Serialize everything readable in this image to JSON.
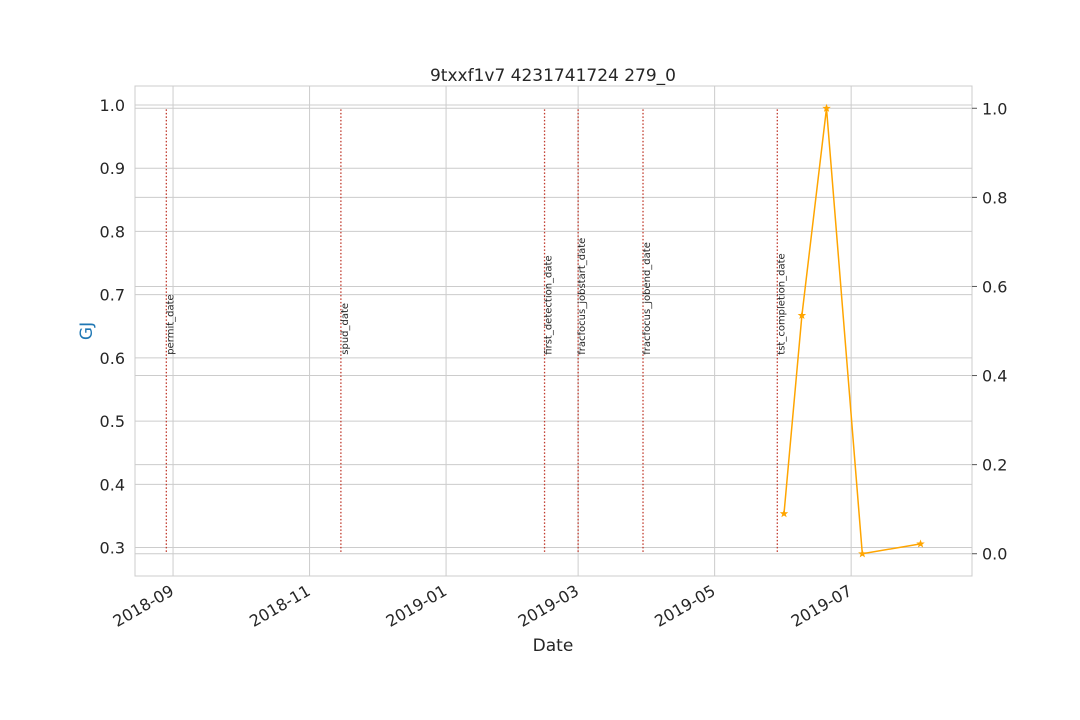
{
  "chart_data": {
    "type": "line",
    "title": "9txxf1v7 4231741724 279_0",
    "xlabel": "Date",
    "ylabel": "GJ",
    "xlim": [
      "2018-08-15",
      "2019-08-24"
    ],
    "x_ticks": [
      "2018-09",
      "2018-11",
      "2019-01",
      "2019-03",
      "2019-05",
      "2019-07"
    ],
    "ylim_left": [
      0.255,
      1.03
    ],
    "y_ticks_left": [
      "0.3",
      "0.4",
      "0.5",
      "0.6",
      "0.7",
      "0.8",
      "0.9",
      "1.0"
    ],
    "ylim_right": [
      -0.05,
      1.05
    ],
    "y_ticks_right": [
      "0.0",
      "0.2",
      "0.4",
      "0.6",
      "0.8",
      "1.0"
    ],
    "grid": true,
    "events": [
      {
        "label": "permit_date",
        "date": "2018-08-29"
      },
      {
        "label": "spud_date",
        "date": "2018-11-15"
      },
      {
        "label": "first_detection_date",
        "date": "2019-02-14"
      },
      {
        "label": "fracfocus_jobstart_date",
        "date": "2019-03-01"
      },
      {
        "label": "fracfocus_jobend_date",
        "date": "2019-03-30"
      },
      {
        "label": "tst_completion_date",
        "date": "2019-05-29"
      }
    ],
    "series": [
      {
        "axis": "right",
        "color": "#ffa500",
        "marker": "star",
        "x": [
          "2019-06-01",
          "2019-06-09",
          "2019-06-20",
          "2019-07-06",
          "2019-08-01"
        ],
        "y": [
          0.09,
          0.535,
          1.0,
          0.0,
          0.022
        ]
      }
    ]
  },
  "colors": {
    "event_line": "#c0392b",
    "ylabel": "#1f77b4",
    "grid": "#cccccc",
    "frame": "#cccccc",
    "series": "#ffa500"
  }
}
